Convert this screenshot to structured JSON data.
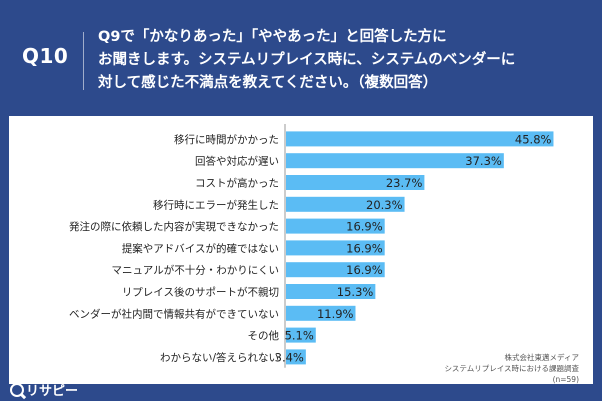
{
  "header": {
    "badge": "Q10",
    "question_line1": "Q9で「かなりあった」「ややあった」と回答した方に",
    "question_line2": "お聞きします。システムリプレイス時に、システムのベンダーに",
    "question_line3": "対して感じた不満点を教えてください。（複数回答）"
  },
  "source": {
    "line1": "株式会社東邁メディア",
    "line2": "システムリプレイス時における課題調査",
    "line3": "(n=59)"
  },
  "logo": {
    "text": "リサピー"
  },
  "colors": {
    "bar": "#5bbcf4",
    "background": "#2d4a8c",
    "panel": "#ffffff"
  },
  "chart_data": {
    "type": "bar",
    "orientation": "horizontal",
    "categories": [
      "移行に時間がかかった",
      "回答や対応が遅い",
      "コストが高かった",
      "移行時にエラーが発生した",
      "発注の際に依頼した内容が実現できなかった",
      "提案やアドバイスが的確ではない",
      "マニュアルが不十分・わかりにくい",
      "リプレイス後のサポートが不親切",
      "ベンダーが社内間で情報共有ができていない",
      "その他",
      "わからない/答えられない"
    ],
    "values": [
      45.8,
      37.3,
      23.7,
      20.3,
      16.9,
      16.9,
      16.9,
      15.3,
      11.9,
      5.1,
      3.4
    ],
    "value_labels": [
      "45.8%",
      "37.3%",
      "23.7%",
      "20.3%",
      "16.9%",
      "16.9%",
      "16.9%",
      "15.3%",
      "11.9%",
      "5.1%",
      "3.4%"
    ],
    "xlim": [
      0,
      50
    ]
  }
}
